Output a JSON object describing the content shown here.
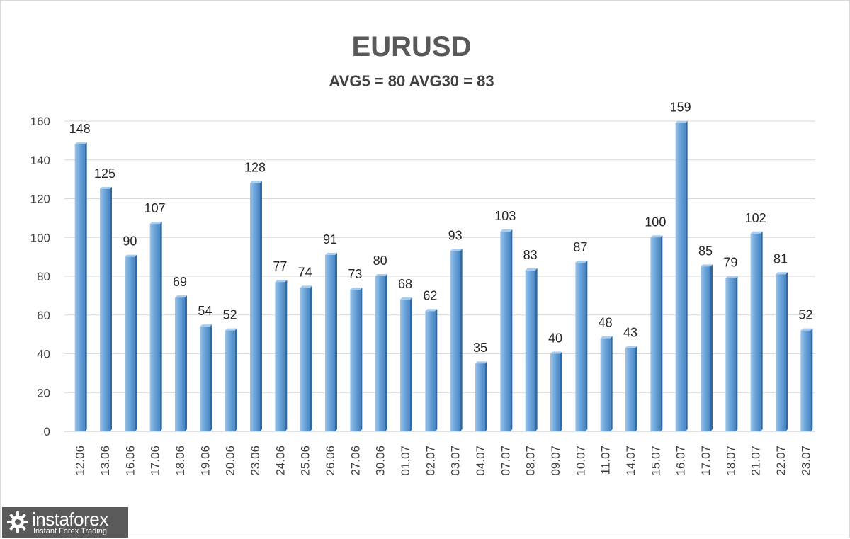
{
  "chart_data": {
    "type": "bar",
    "title": "EURUSD",
    "subtitle": "AVG5 = 80 AVG30 = 83",
    "categories": [
      "12.06",
      "13.06",
      "16.06",
      "17.06",
      "18.06",
      "19.06",
      "20.06",
      "23.06",
      "24.06",
      "25.06",
      "26.06",
      "27.06",
      "30.06",
      "01.07",
      "02.07",
      "03.07",
      "04.07",
      "07.07",
      "08.07",
      "09.07",
      "10.07",
      "11.07",
      "14.07",
      "15.07",
      "16.07",
      "17.07",
      "18.07",
      "21.07",
      "22.07",
      "23.07"
    ],
    "values": [
      148,
      125,
      90,
      107,
      69,
      54,
      52,
      128,
      77,
      74,
      91,
      73,
      80,
      68,
      62,
      93,
      35,
      103,
      83,
      40,
      87,
      48,
      43,
      100,
      159,
      85,
      79,
      102,
      81,
      52
    ],
    "ylim": [
      0,
      160
    ],
    "yticks": [
      0,
      20,
      40,
      60,
      80,
      100,
      120,
      140,
      160
    ],
    "grid": true,
    "data_labels": true,
    "legend": "none",
    "xlabel": "",
    "ylabel": "",
    "bar_color": "#5b9bd5"
  },
  "logo": {
    "brand": "instaforex",
    "tagline": "Instant Forex Trading"
  }
}
